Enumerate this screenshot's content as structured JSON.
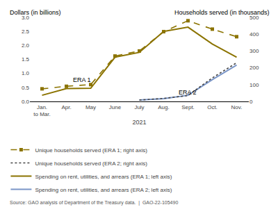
{
  "chart_data": {
    "type": "line",
    "categories": [
      "Jan.\nto Mar.",
      "Apr.",
      "May",
      "June",
      "July",
      "Aug.",
      "Sept.",
      "Oct.",
      "Nov."
    ],
    "xlabel": "2021",
    "ylabel": "Dollars (in billions)",
    "y2label": "Households served (in thousands)",
    "ylim": [
      0,
      3.0
    ],
    "yticks": [
      {
        "value": 0,
        "label": "0.0"
      },
      0.5,
      {
        "value": 1.0,
        "label": "1.0"
      },
      1.5,
      {
        "value": 2.0,
        "label": "2.0"
      },
      2.5,
      {
        "value": 3.0,
        "label": "3.0"
      }
    ],
    "y2lim": [
      0,
      500
    ],
    "y2ticks": [
      0,
      100,
      200,
      300,
      400,
      500
    ],
    "grid": false,
    "legend": "bottom",
    "series": [
      {
        "name": "Unique households served (ERA 1; right axis)",
        "color": "#8B7300",
        "axis": "y2",
        "line_style": "dashed",
        "marker": "square",
        "values": [
          75,
          90,
          100,
          270,
          300,
          415,
          480,
          430,
          385
        ]
      },
      {
        "name": "Unique households served (ERA 2; right axis)",
        "color": "#444444",
        "axis": "y2",
        "line_style": "dotted",
        "values": [
          null,
          null,
          null,
          null,
          8,
          18,
          35,
          140,
          230
        ]
      },
      {
        "name": "Spending on rent, utilities, and arrears (ERA 1; left axis)",
        "color": "#8B7300",
        "line_style": "solid",
        "values": [
          0.22,
          0.46,
          0.47,
          1.58,
          1.75,
          2.5,
          2.65,
          2.05,
          1.58
        ]
      },
      {
        "name": "Spending on rent, utilities, and arrears (ERA 2; left axis)",
        "color": "#7B96C8",
        "line_style": "solid",
        "values": [
          null,
          null,
          null,
          null,
          0.05,
          0.1,
          0.22,
          0.78,
          1.3
        ]
      }
    ],
    "annotations": [
      {
        "text": "ERA 1",
        "x": 1.2,
        "y": 0.78
      },
      {
        "text": "ERA 2",
        "x": 5.55,
        "y": 0.32
      }
    ],
    "source": "Source: GAO analysis of Department of the Treasury data.  |  GAO-22-105490"
  }
}
